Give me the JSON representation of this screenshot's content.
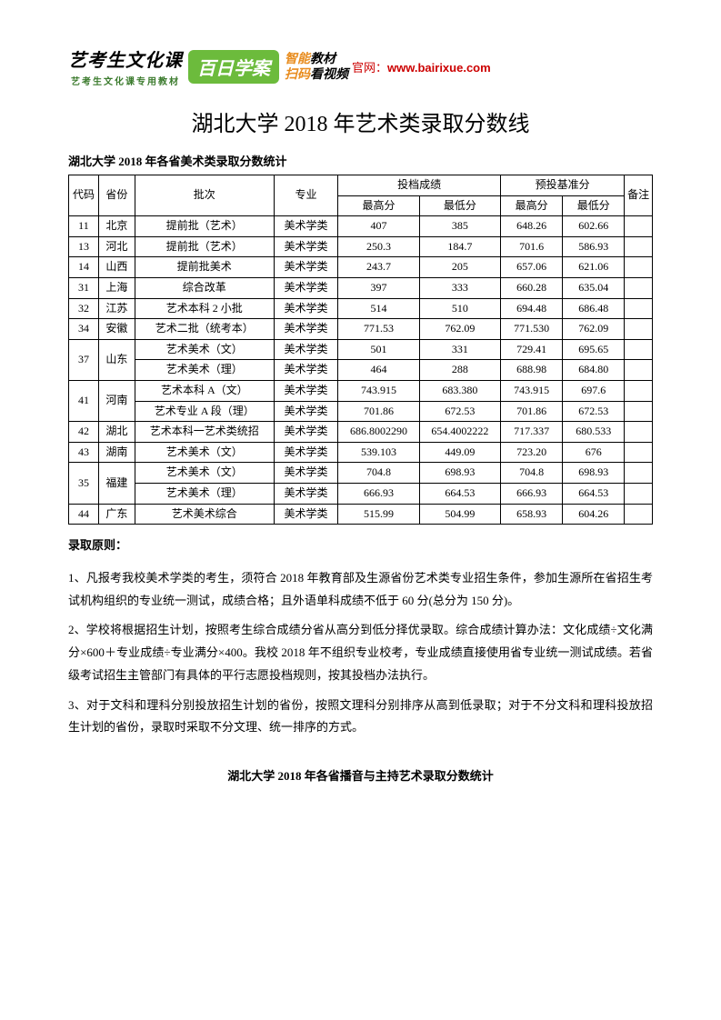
{
  "banner": {
    "left_line1": "艺考生文化课",
    "left_line2": "艺考生文化课专用教材",
    "green": "百日学案",
    "r1a": "智能",
    "r1b": "教材",
    "r2a": "扫码",
    "r2b": "看视频",
    "gw_label": "官网：",
    "gw_url": "www.bairixue.com"
  },
  "title": "湖北大学 2018 年艺术类录取分数线",
  "subtitle": "湖北大学 2018 年各省美术类录取分数统计",
  "thead": {
    "code": "代码",
    "prov": "省份",
    "batch": "批次",
    "major": "专业",
    "score_group": "投档成绩",
    "base_group": "预投基准分",
    "note": "备注",
    "high": "最高分",
    "low": "最低分"
  },
  "rows": [
    {
      "code": "11",
      "prov": "北京",
      "batch": "提前批（艺术）",
      "major": "美术学类",
      "sh": "407",
      "sl": "385",
      "bh": "648.26",
      "bl": "602.66"
    },
    {
      "code": "13",
      "prov": "河北",
      "batch": "提前批（艺术）",
      "major": "美术学类",
      "sh": "250.3",
      "sl": "184.7",
      "bh": "701.6",
      "bl": "586.93"
    },
    {
      "code": "14",
      "prov": "山西",
      "batch": "提前批美术",
      "major": "美术学类",
      "sh": "243.7",
      "sl": "205",
      "bh": "657.06",
      "bl": "621.06"
    },
    {
      "code": "31",
      "prov": "上海",
      "batch": "综合改革",
      "major": "美术学类",
      "sh": "397",
      "sl": "333",
      "bh": "660.28",
      "bl": "635.04"
    },
    {
      "code": "32",
      "prov": "江苏",
      "batch": "艺术本科 2 小批",
      "major": "美术学类",
      "sh": "514",
      "sl": "510",
      "bh": "694.48",
      "bl": "686.48"
    },
    {
      "code": "34",
      "prov": "安徽",
      "batch": "艺术二批（统考本）",
      "major": "美术学类",
      "sh": "771.53",
      "sl": "762.09",
      "bh": "771.530",
      "bl": "762.09"
    },
    {
      "code": "37",
      "prov": "山东",
      "rowspan": 2,
      "sub": [
        {
          "batch": "艺术美术（文）",
          "major": "美术学类",
          "sh": "501",
          "sl": "331",
          "bh": "729.41",
          "bl": "695.65"
        },
        {
          "batch": "艺术美术（理）",
          "major": "美术学类",
          "sh": "464",
          "sl": "288",
          "bh": "688.98",
          "bl": "684.80"
        }
      ]
    },
    {
      "code": "41",
      "prov": "河南",
      "rowspan": 2,
      "sub": [
        {
          "batch": "艺术本科 A（文）",
          "major": "美术学类",
          "sh": "743.915",
          "sl": "683.380",
          "bh": "743.915",
          "bl": "697.6"
        },
        {
          "batch": "艺术专业 A 段（理）",
          "major": "美术学类",
          "sh": "701.86",
          "sl": "672.53",
          "bh": "701.86",
          "bl": "672.53"
        }
      ]
    },
    {
      "code": "42",
      "prov": "湖北",
      "batch": "艺术本科一艺术类统招",
      "major": "美术学类",
      "sh": "686.8002290",
      "sl": "654.4002222",
      "bh": "717.337",
      "bl": "680.533"
    },
    {
      "code": "43",
      "prov": "湖南",
      "batch": "艺术美术（文）",
      "major": "美术学类",
      "sh": "539.103",
      "sl": "449.09",
      "bh": "723.20",
      "bl": "676"
    },
    {
      "code": "35",
      "prov": "福建",
      "rowspan": 2,
      "sub": [
        {
          "batch": "艺术美术（文）",
          "major": "美术学类",
          "sh": "704.8",
          "sl": "698.93",
          "bh": "704.8",
          "bl": "698.93"
        },
        {
          "batch": "艺术美术（理）",
          "major": "美术学类",
          "sh": "666.93",
          "sl": "664.53",
          "bh": "666.93",
          "bl": "664.53"
        }
      ]
    },
    {
      "code": "44",
      "prov": "广东",
      "batch": "艺术美术综合",
      "major": "美术学类",
      "sh": "515.99",
      "sl": "504.99",
      "bh": "658.93",
      "bl": "604.26"
    }
  ],
  "rules_head": "录取原则：",
  "rules": [
    "1、凡报考我校美术学类的考生，须符合 2018 年教育部及生源省份艺术类专业招生条件，参加生源所在省招生考试机构组织的专业统一测试，成绩合格；且外语单科成绩不低于 60 分(总分为 150 分)。",
    "2、学校将根据招生计划，按照考生综合成绩分省从高分到低分择优录取。综合成绩计算办法：文化成绩÷文化满分×600＋专业成绩÷专业满分×400。我校 2018 年不组织专业校考，专业成绩直接使用省专业统一测试成绩。若省级考试招生主管部门有具体的平行志愿投档规则，按其投档办法执行。",
    "3、对于文科和理科分别投放招生计划的省份，按照文理科分别排序从高到低录取；对于不分文科和理科投放招生计划的省份，录取时采取不分文理、统一排序的方式。"
  ],
  "footer_subtitle": "湖北大学 2018 年各省播音与主持艺术录取分数统计"
}
